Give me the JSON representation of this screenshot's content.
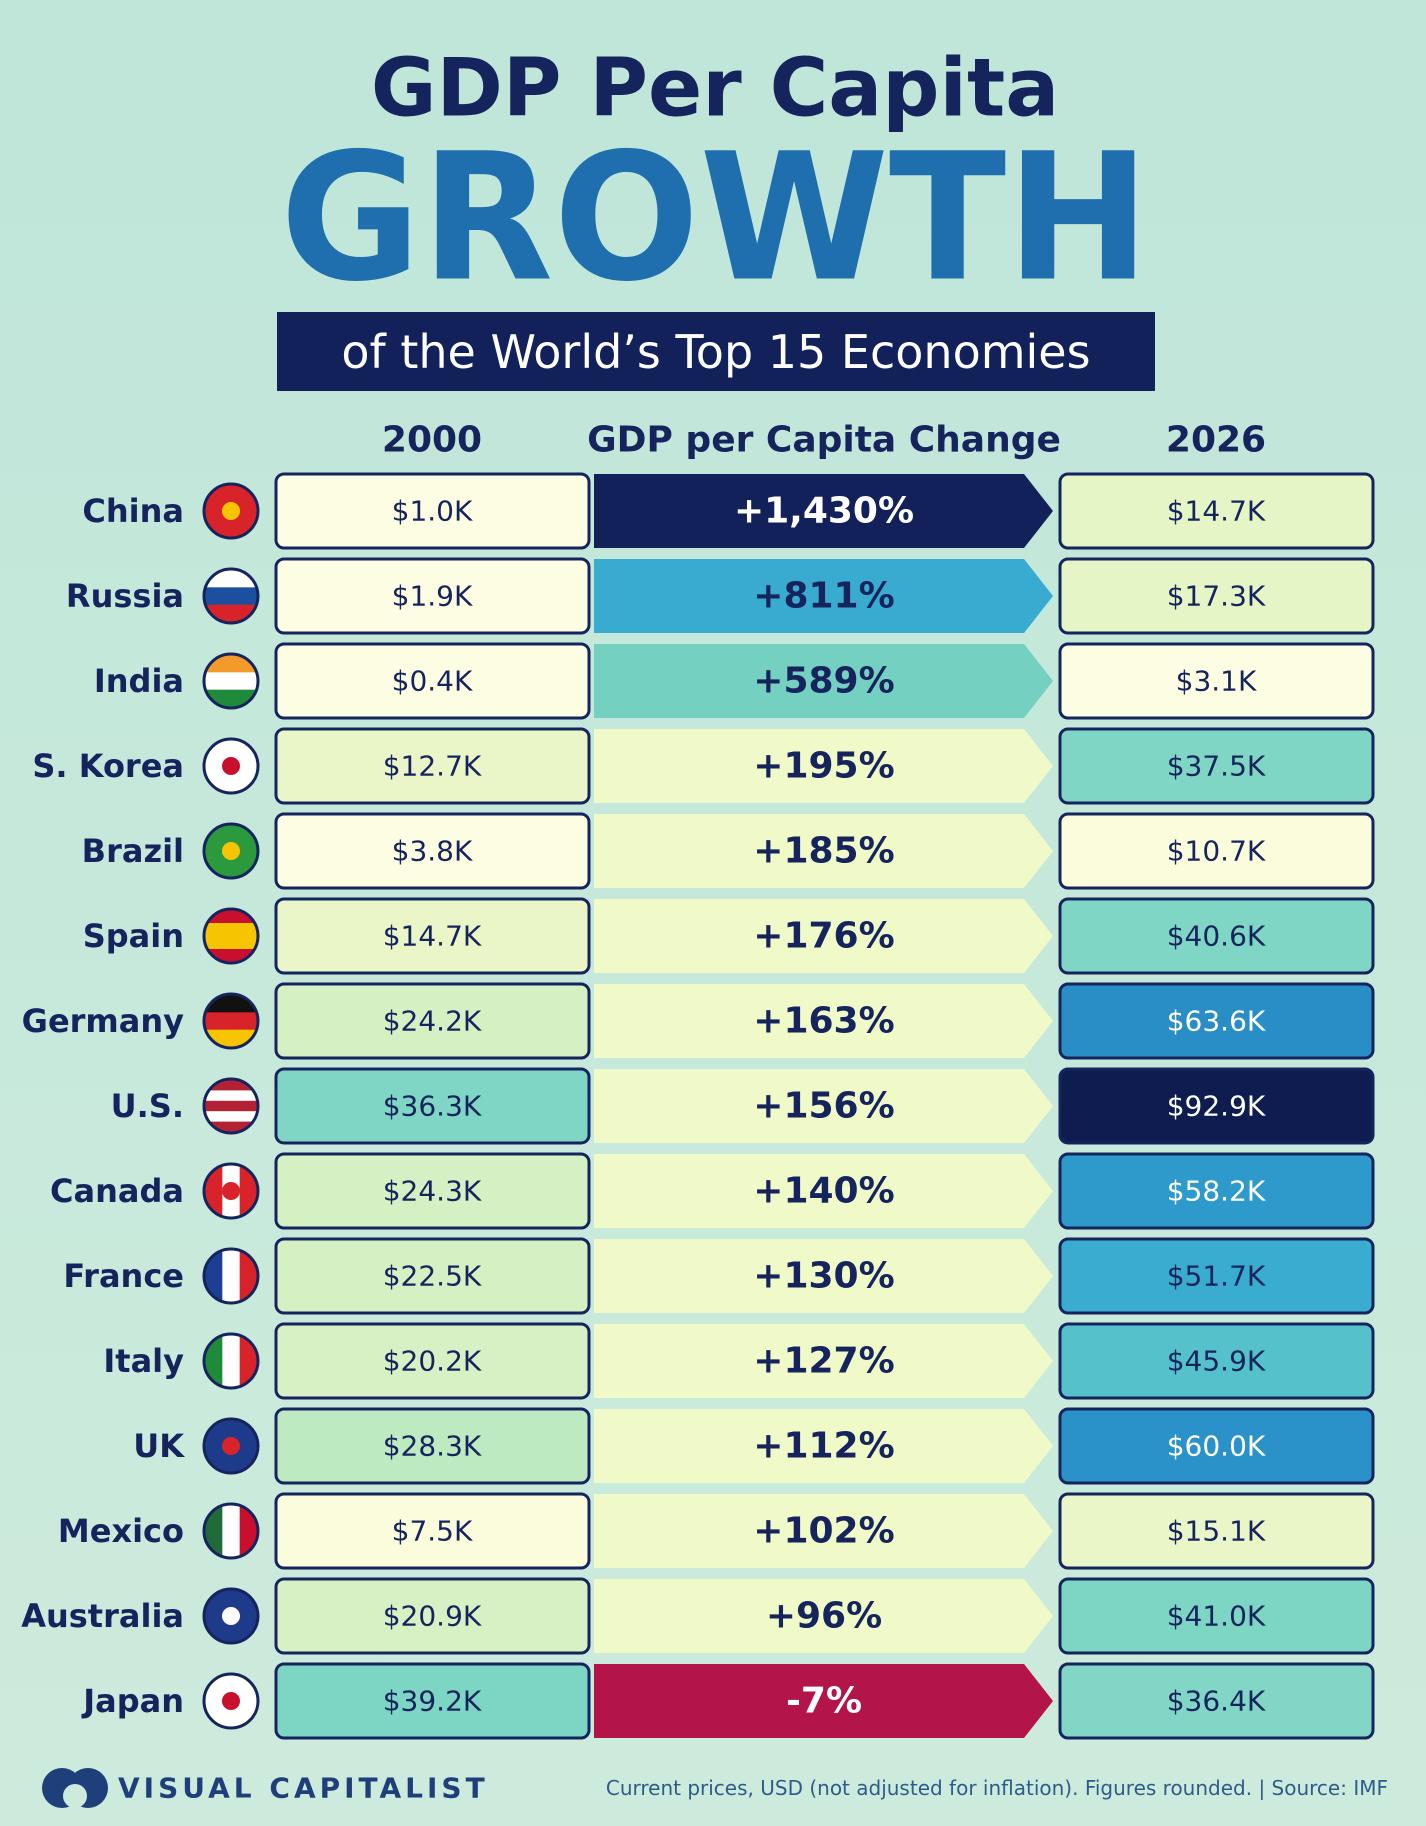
{
  "header": {
    "title": "GDP Per Capita",
    "highlight": "GROWTH",
    "subtitle": "of the World’s Top 15 Economies"
  },
  "table": {
    "columns": [
      "2000",
      "GDP per Capita Change",
      "2026"
    ],
    "rows": [
      {
        "country": "China",
        "gdp_2000": "$1.0K",
        "change": "+1,430%",
        "gdp_2026": "$14.7K",
        "color_2000": "#fdfde3",
        "color_change": "#13215a",
        "color_2026": "#e6f5c6"
      },
      {
        "country": "Russia",
        "gdp_2000": "$1.9K",
        "change": "+811%",
        "gdp_2026": "$17.3K",
        "color_2000": "#fdfde3",
        "color_change": "#39abd0",
        "color_2026": "#e6f5c6"
      },
      {
        "country": "India",
        "gdp_2000": "$0.4K",
        "change": "+589%",
        "gdp_2026": "$3.1K",
        "color_2000": "#fdfde3",
        "color_change": "#74d0c0",
        "color_2026": "#fdfde3"
      },
      {
        "country": "S. Korea",
        "gdp_2000": "$12.7K",
        "change": "+195%",
        "gdp_2026": "$37.5K",
        "color_2000": "#eaf6c8",
        "color_change": "#f0f9c8",
        "color_2026": "#7fd6c4"
      },
      {
        "country": "Brazil",
        "gdp_2000": "$3.8K",
        "change": "+185%",
        "gdp_2026": "$10.7K",
        "color_2000": "#fdfde3",
        "color_change": "#f0f9c8",
        "color_2026": "#fbfcdc"
      },
      {
        "country": "Spain",
        "gdp_2000": "$14.7K",
        "change": "+176%",
        "gdp_2026": "$40.6K",
        "color_2000": "#eaf6c8",
        "color_change": "#f0f9c8",
        "color_2026": "#7fd6c4"
      },
      {
        "country": "Germany",
        "gdp_2000": "$24.2K",
        "change": "+163%",
        "gdp_2026": "$63.6K",
        "color_2000": "#d5f0c2",
        "color_change": "#f0f9c8",
        "color_2026": "#2a8ec6"
      },
      {
        "country": "U.S.",
        "gdp_2000": "$36.3K",
        "change": "+156%",
        "gdp_2026": "$92.9K",
        "color_2000": "#80d6c5",
        "color_change": "#f0f9c8",
        "color_2026": "#0f1c50"
      },
      {
        "country": "Canada",
        "gdp_2000": "$24.3K",
        "change": "+140%",
        "gdp_2026": "$58.2K",
        "color_2000": "#d5f0c2",
        "color_change": "#f0f9c8",
        "color_2026": "#2d9acb"
      },
      {
        "country": "France",
        "gdp_2000": "$22.5K",
        "change": "+130%",
        "gdp_2026": "$51.7K",
        "color_2000": "#d5f0c2",
        "color_change": "#f0f9c8",
        "color_2026": "#3aaccf"
      },
      {
        "country": "Italy",
        "gdp_2000": "$20.2K",
        "change": "+127%",
        "gdp_2026": "$45.9K",
        "color_2000": "#d8f1c4",
        "color_change": "#f0f9c8",
        "color_2026": "#55c2cb"
      },
      {
        "country": "UK",
        "gdp_2000": "$28.3K",
        "change": "+112%",
        "gdp_2026": "$60.0K",
        "color_2000": "#bdeac0",
        "color_change": "#f0f9c8",
        "color_2026": "#2a92c8"
      },
      {
        "country": "Mexico",
        "gdp_2000": "$7.5K",
        "change": "+102%",
        "gdp_2026": "$15.1K",
        "color_2000": "#fbfcdc",
        "color_change": "#f0f9c8",
        "color_2026": "#eaf6c8"
      },
      {
        "country": "Australia",
        "gdp_2000": "$20.9K",
        "change": "+96%",
        "gdp_2026": "$41.0K",
        "color_2000": "#d8f1c4",
        "color_change": "#f0f9c8",
        "color_2026": "#7dd5c4"
      },
      {
        "country": "Japan",
        "gdp_2000": "$39.2K",
        "change": "-7%",
        "gdp_2026": "$36.4K",
        "color_2000": "#7dd5c4",
        "color_change": "#b3154b",
        "color_2026": "#82d6c6"
      }
    ]
  },
  "footer": {
    "brand": "VISUAL CAPITALIST",
    "note": "Current prices, USD (not adjusted for inflation). Figures rounded. | Source: IMF"
  }
}
